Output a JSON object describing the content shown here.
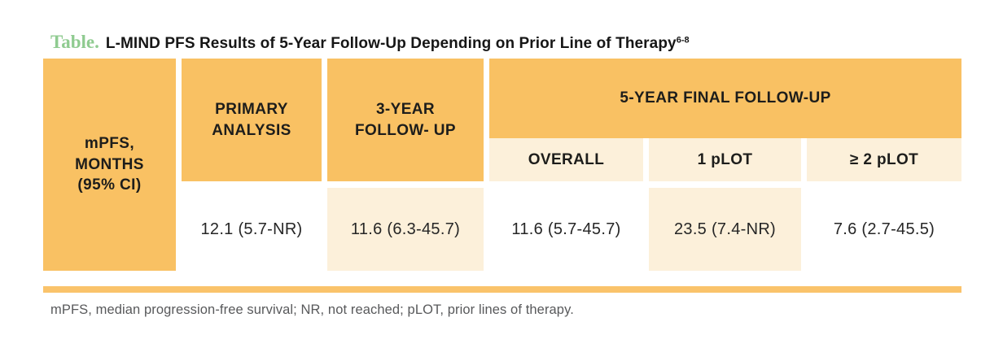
{
  "title": {
    "label": "Table.",
    "text": "L-MIND PFS Results of 5-Year Follow-Up Depending on Prior Line of Therapy",
    "superscript": "6-8"
  },
  "table": {
    "row_header": "mPFS,\nMONTHS\n(95% CI)",
    "primary_header": "PRIMARY\nANALYSIS",
    "three_year_header": "3-YEAR\nFOLLOW- UP",
    "five_year_group_header": "5-YEAR FINAL FOLLOW-UP",
    "sub_headers": {
      "overall": "OVERALL",
      "one_plot": "1 pLOT",
      "two_plus_plot": "≥ 2 pLOT"
    },
    "values": {
      "primary": "12.1 (5.7-NR)",
      "three_year": "11.6 (6.3-45.7)",
      "five_year_overall": "11.6 (5.7-45.7)",
      "five_year_one_plot": "23.5 (7.4-NR)",
      "five_year_two_plus_plot": "7.6 (2.7-45.5)"
    }
  },
  "footnote": "mPFS, median progression-free survival; NR, not reached; pLOT, prior lines of therapy.",
  "colors": {
    "orange": "#f9c163",
    "cream": "#fcf0da",
    "divider_orange": "#fac36b",
    "title_green": "#8fcb90",
    "footnote_gray": "#58595b"
  },
  "chart_data": {
    "type": "table",
    "title": "L-MIND PFS Results of 5-Year Follow-Up Depending on Prior Line of Therapy",
    "title_reference": "6-8",
    "row_label": "mPFS, MONTHS (95% CI)",
    "column_groups": [
      {
        "label": "PRIMARY ANALYSIS",
        "columns": [
          "PRIMARY ANALYSIS"
        ]
      },
      {
        "label": "3-YEAR FOLLOW- UP",
        "columns": [
          "3-YEAR FOLLOW- UP"
        ]
      },
      {
        "label": "5-YEAR FINAL FOLLOW-UP",
        "columns": [
          "OVERALL",
          "1 pLOT",
          "≥ 2 pLOT"
        ]
      }
    ],
    "rows": [
      {
        "label": "mPFS, MONTHS (95% CI)",
        "values": [
          "12.1 (5.7-NR)",
          "11.6 (6.3-45.7)",
          "11.6 (5.7-45.7)",
          "23.5 (7.4-NR)",
          "7.6 (2.7-45.5)"
        ]
      }
    ],
    "footnote": "mPFS, median progression-free survival; NR, not reached; pLOT, prior lines of therapy."
  }
}
